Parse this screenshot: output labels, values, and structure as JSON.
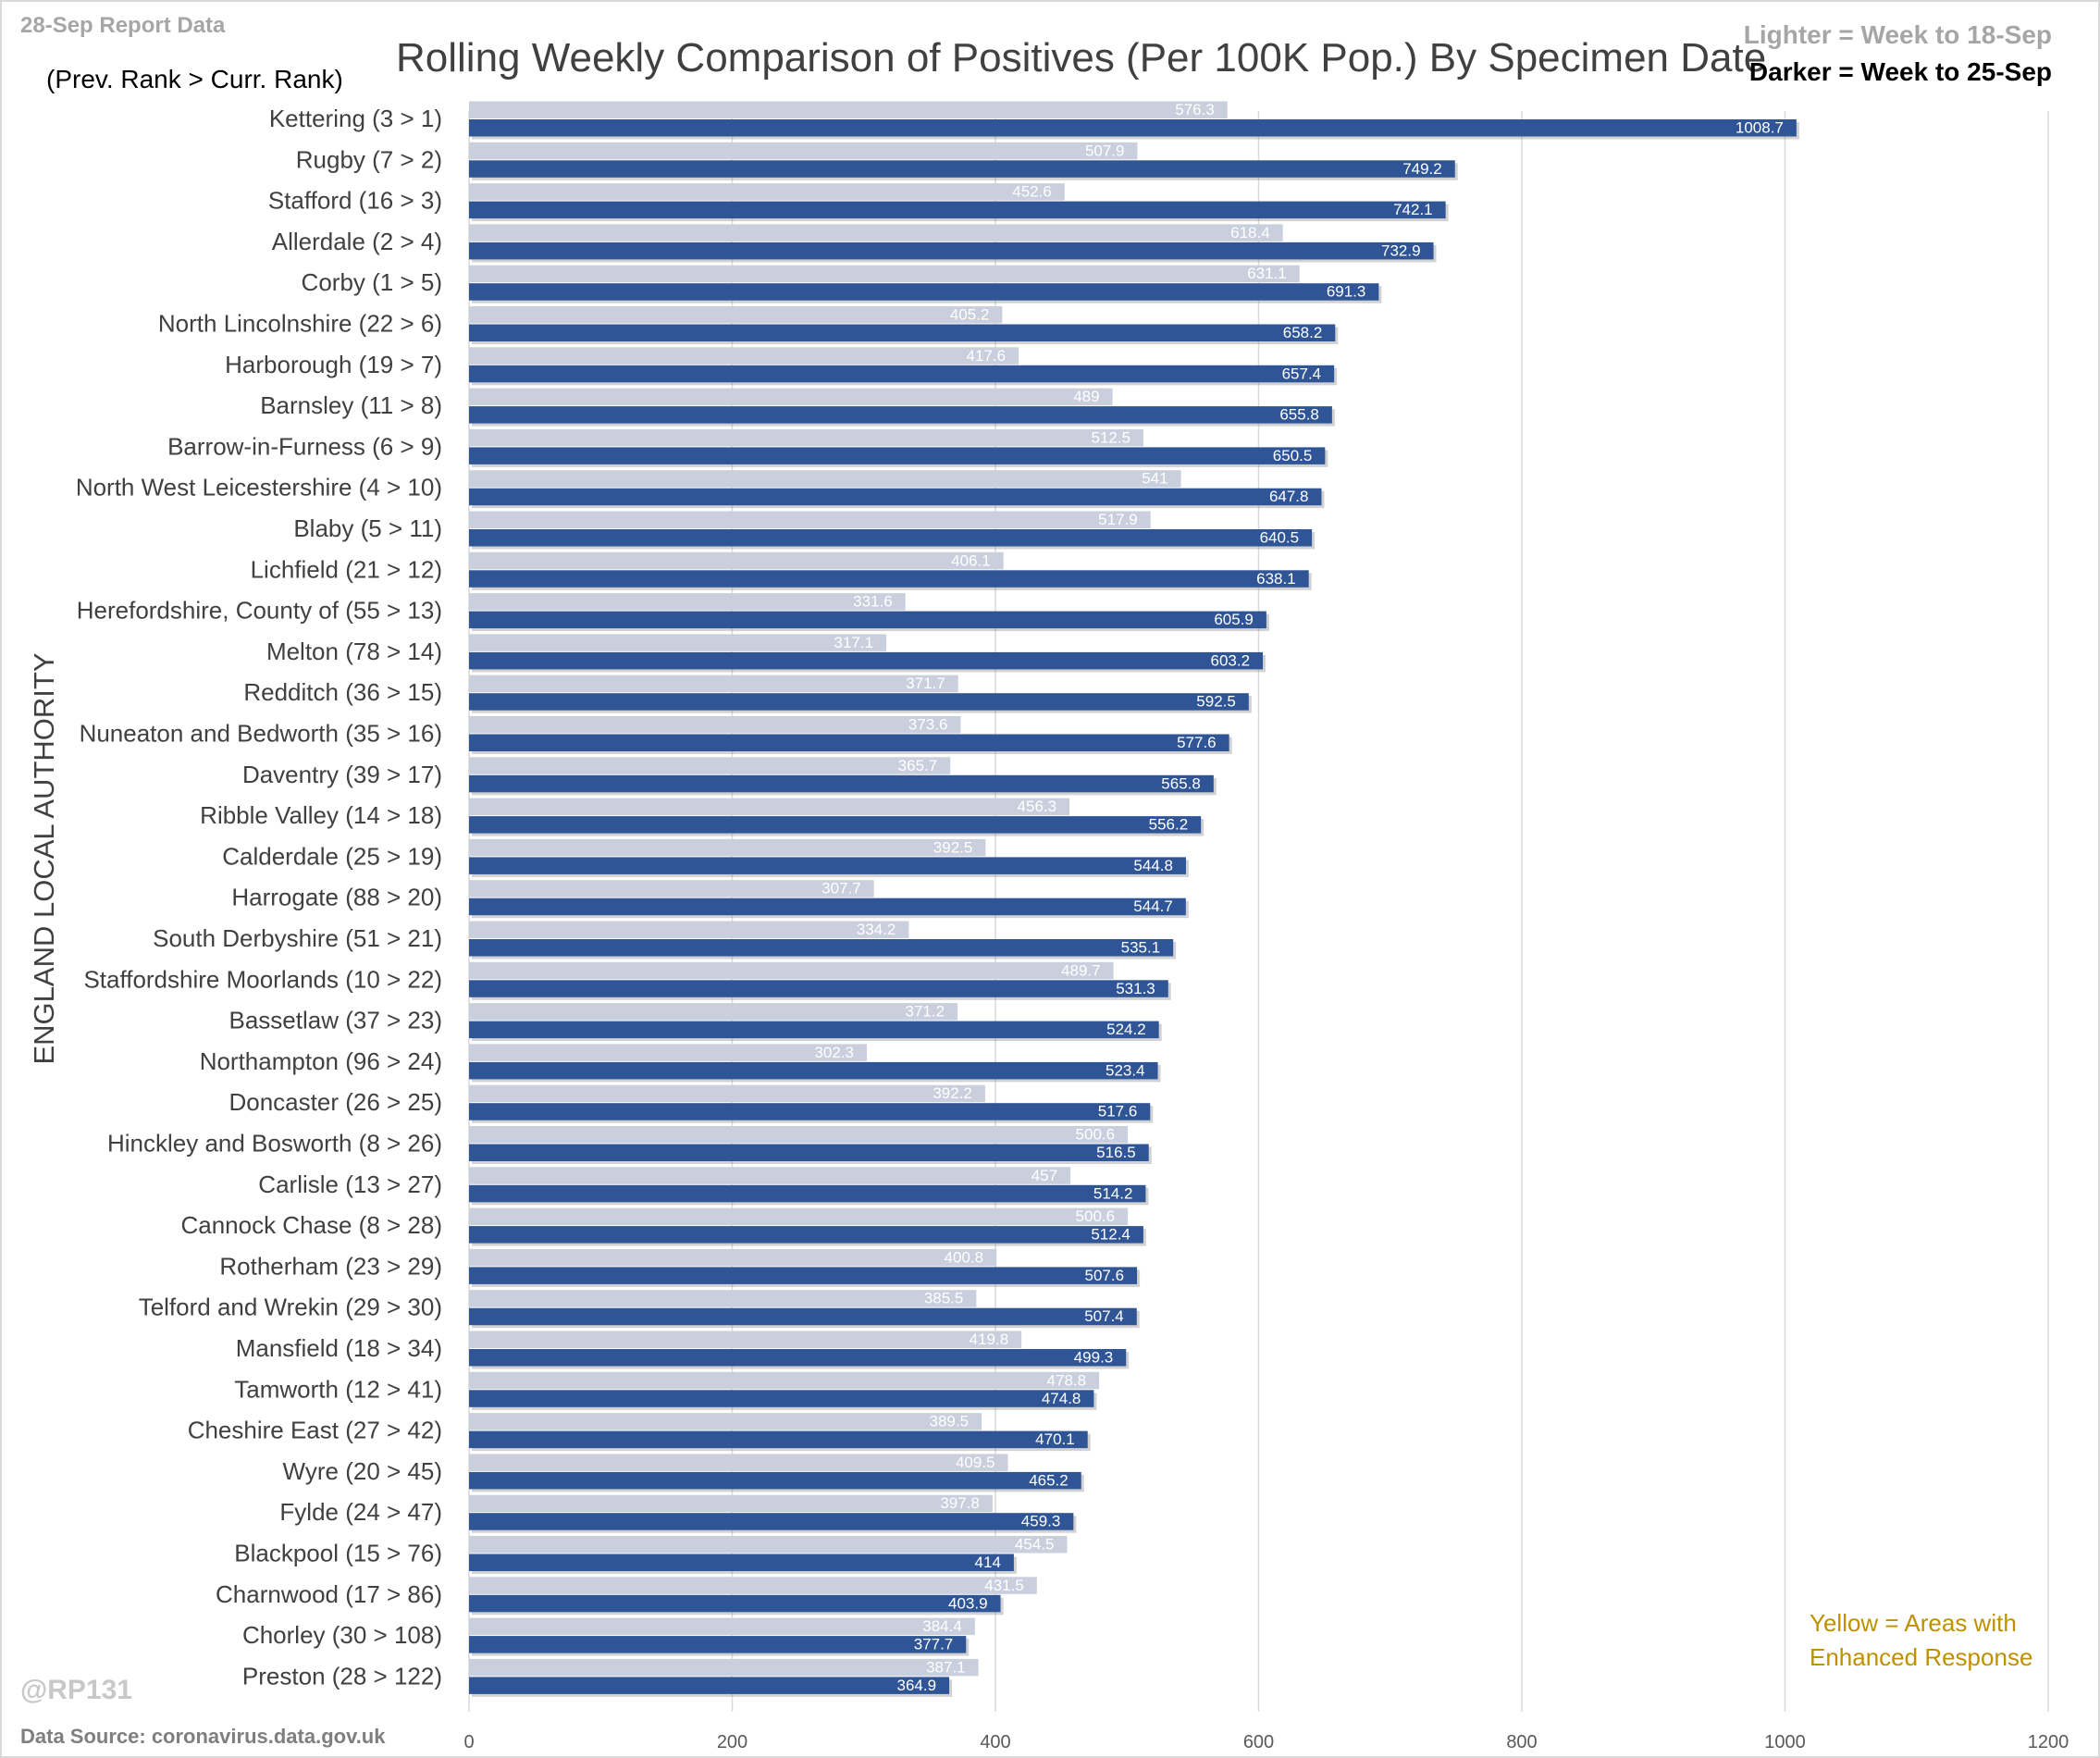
{
  "header": {
    "report_label": "28-Sep Report Data",
    "rank_note": "(Prev. Rank > Curr. Rank)",
    "title": "Rolling Weekly Comparison of Positives  (Per 100K Pop.) By Specimen Date",
    "legend_light": "Lighter =  Week to 18-Sep",
    "legend_dark": "Darker =  Week to 25-Sep"
  },
  "footer": {
    "yellow_note": "Yellow = Areas with Enhanced Response",
    "watermark": "@RP131",
    "source": "Data Source: coronavirus.data.gov.uk"
  },
  "colors": {
    "prev_bar": "#c9cfdc",
    "curr_bar": "#2f5597",
    "grid": "#d9d9d9",
    "note_yellow": "#bf9000"
  },
  "chart_data": {
    "type": "bar",
    "orientation": "horizontal",
    "title": "Rolling Weekly Comparison of Positives  (Per 100K Pop.) By Specimen Date",
    "ylabel": "ENGLAND LOCAL AUTHORITY",
    "xlabel": "",
    "xlim": [
      0,
      1200
    ],
    "xticks": [
      0,
      200,
      400,
      600,
      800,
      1000,
      1200
    ],
    "grid": true,
    "legend": "top-right",
    "categories": [
      "Kettering (3 > 1)",
      "Rugby (7 > 2)",
      "Stafford (16 > 3)",
      "Allerdale (2 > 4)",
      "Corby (1 > 5)",
      "North Lincolnshire (22 > 6)",
      "Harborough (19 > 7)",
      "Barnsley (11 > 8)",
      "Barrow-in-Furness (6 > 9)",
      "North West Leicestershire (4 > 10)",
      "Blaby (5 > 11)",
      "Lichfield (21 > 12)",
      "Herefordshire, County of (55 > 13)",
      "Melton (78 > 14)",
      "Redditch (36 > 15)",
      "Nuneaton and Bedworth (35 > 16)",
      "Daventry (39 > 17)",
      "Ribble Valley (14 > 18)",
      "Calderdale (25 > 19)",
      "Harrogate (88 > 20)",
      "South Derbyshire (51 > 21)",
      "Staffordshire Moorlands (10 > 22)",
      "Bassetlaw (37 > 23)",
      "Northampton (96 > 24)",
      "Doncaster (26 > 25)",
      "Hinckley and Bosworth (8 > 26)",
      "Carlisle (13 > 27)",
      "Cannock Chase (8 > 28)",
      "Rotherham (23 > 29)",
      "Telford and Wrekin (29 > 30)",
      "Mansfield (18 > 34)",
      "Tamworth (12 > 41)",
      "Cheshire East (27 > 42)",
      "Wyre (20 > 45)",
      "Fylde (24 > 47)",
      "Blackpool (15 > 76)",
      "Charnwood (17 > 86)",
      "Chorley (30 > 108)",
      "Preston (28 > 122)"
    ],
    "series": [
      {
        "name": "Week to 18-Sep",
        "values": [
          576.3,
          507.9,
          452.6,
          618.4,
          631.1,
          405.2,
          417.6,
          489,
          512.5,
          541,
          517.9,
          406.1,
          331.6,
          317.1,
          371.7,
          373.6,
          365.7,
          456.3,
          392.5,
          307.7,
          334.2,
          489.7,
          371.2,
          302.3,
          392.2,
          500.6,
          457,
          500.6,
          400.8,
          385.5,
          419.8,
          478.8,
          389.5,
          409.5,
          397.8,
          454.5,
          431.5,
          384.4,
          387.1
        ],
        "labels": [
          "576.3",
          "507.9",
          "452.6",
          "618.4",
          "631.1",
          "405.2",
          "417.6",
          "489",
          "512.5",
          "541",
          "517.9",
          "406.1",
          "331.6",
          "317.1",
          "371.7",
          "373.6",
          "365.7",
          "456.3",
          "392.5",
          "307.7",
          "334.2",
          "489.7",
          "371.2",
          "302.3",
          "392.2",
          "500.6",
          "457",
          "500.6",
          "400.8",
          "385.5",
          "419.8",
          "478.8",
          "389.5",
          "409.5",
          "397.8",
          "454.5",
          "431.5",
          "384.4",
          "387.1"
        ]
      },
      {
        "name": "Week to 25-Sep",
        "values": [
          1008.7,
          749.2,
          742.1,
          732.9,
          691.3,
          658.2,
          657.4,
          655.8,
          650.5,
          647.8,
          640.5,
          638.1,
          605.9,
          603.2,
          592.5,
          577.6,
          565.8,
          556.2,
          544.8,
          544.7,
          535.1,
          531.3,
          524.2,
          523.4,
          517.6,
          516.5,
          514.2,
          512.4,
          507.6,
          507.4,
          499.3,
          474.8,
          470.1,
          465.2,
          459.3,
          414,
          403.9,
          377.7,
          364.9
        ],
        "labels": [
          "1008.7",
          "749.2",
          "742.1",
          "732.9",
          "691.3",
          "658.2",
          "657.4",
          "655.8",
          "650.5",
          "647.8",
          "640.5",
          "638.1",
          "605.9",
          "603.2",
          "592.5",
          "577.6",
          "565.8",
          "556.2",
          "544.8",
          "544.7",
          "535.1",
          "531.3",
          "524.2",
          "523.4",
          "517.6",
          "516.5",
          "514.2",
          "512.4",
          "507.6",
          "507.4",
          "499.3",
          "474.8",
          "470.1",
          "465.2",
          "459.3",
          "414",
          "403.9",
          "377.7",
          "364.9"
        ]
      }
    ]
  }
}
